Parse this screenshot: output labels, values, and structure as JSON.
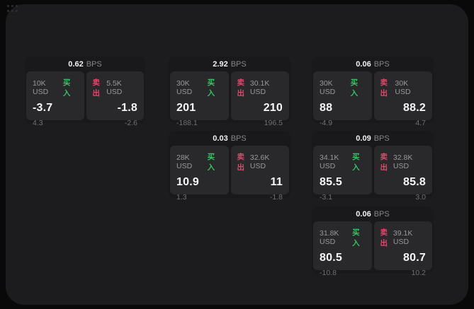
{
  "app": {
    "bps_suffix": "BPS",
    "buy_label": "买入",
    "sell_label": "卖出",
    "colors": {
      "background": "#09090a",
      "surface": "#1c1c1e",
      "card": "#19191b",
      "tile": "#29292b",
      "buy_green": "#35c463",
      "sell_red": "#e1476a"
    }
  },
  "cards": [
    {
      "bps": "0.62",
      "buy": {
        "size": "10K USD",
        "value": "-3.7",
        "sub": "4.3"
      },
      "sell": {
        "size": "5.5K USD",
        "value": "-1.8",
        "sub": "-2.6"
      }
    },
    {
      "bps": "2.92",
      "buy": {
        "size": "30K USD",
        "value": "201",
        "sub": "-188.1"
      },
      "sell": {
        "size": "30.1K USD",
        "value": "210",
        "sub": "196.5"
      }
    },
    {
      "bps": "0.06",
      "buy": {
        "size": "30K USD",
        "value": "88",
        "sub": "-4.9"
      },
      "sell": {
        "size": "30K USD",
        "value": "88.2",
        "sub": "4.7"
      }
    },
    {
      "bps": "0.03",
      "buy": {
        "size": "28K USD",
        "value": "10.9",
        "sub": "1.3"
      },
      "sell": {
        "size": "32.6K USD",
        "value": "11",
        "sub": "-1.8"
      }
    },
    {
      "bps": "0.09",
      "buy": {
        "size": "34.1K USD",
        "value": "85.5",
        "sub": "-3.1"
      },
      "sell": {
        "size": "32.8K USD",
        "value": "85.8",
        "sub": "3.0"
      }
    },
    {
      "bps": "0.06",
      "buy": {
        "size": "31.8K USD",
        "value": "80.5",
        "sub": "-10.8"
      },
      "sell": {
        "size": "39.1K USD",
        "value": "80.7",
        "sub": "10.2"
      }
    }
  ]
}
